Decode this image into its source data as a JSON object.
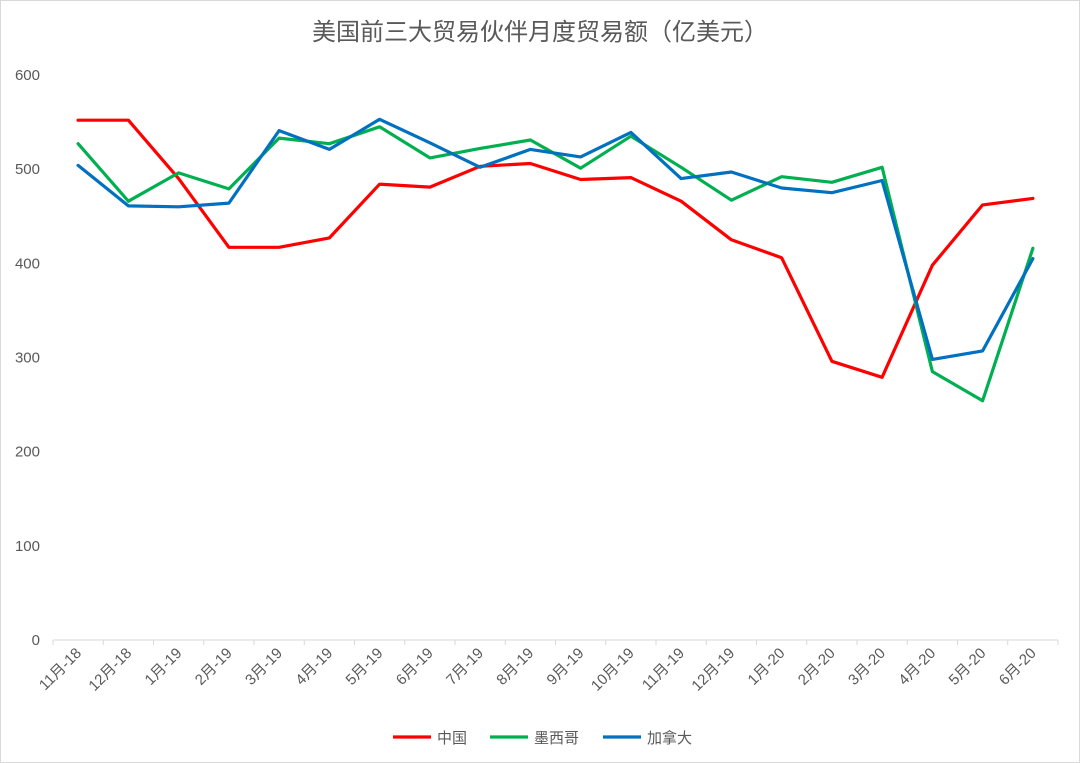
{
  "chart_data": {
    "type": "line",
    "title": "美国前三大贸易伙伴月度贸易额（亿美元）",
    "xlabel": "",
    "ylabel": "",
    "categories": [
      "11月-18",
      "12月-18",
      "1月-19",
      "2月-19",
      "3月-19",
      "4月-19",
      "5月-19",
      "6月-19",
      "7月-19",
      "8月-19",
      "9月-19",
      "10月-19",
      "11月-19",
      "12月-19",
      "1月-20",
      "2月-20",
      "3月-20",
      "4月-20",
      "5月-20",
      "6月-20"
    ],
    "ylim": [
      0,
      600
    ],
    "yticks": [
      0,
      100,
      200,
      300,
      400,
      500,
      600
    ],
    "grid": false,
    "legend_position": "bottom",
    "series": [
      {
        "name": "中国",
        "color": "#ff0000",
        "values": [
          552,
          552,
          490,
          417,
          417,
          427,
          484,
          481,
          503,
          506,
          489,
          491,
          466,
          425,
          406,
          296,
          279,
          398,
          462,
          469
        ]
      },
      {
        "name": "墨西哥",
        "color": "#00b050",
        "values": [
          527,
          466,
          496,
          479,
          533,
          527,
          545,
          512,
          522,
          531,
          501,
          535,
          502,
          467,
          492,
          486,
          502,
          285,
          254,
          416
        ]
      },
      {
        "name": "加拿大",
        "color": "#0070c0",
        "values": [
          504,
          461,
          460,
          464,
          541,
          521,
          553,
          528,
          502,
          521,
          513,
          539,
          490,
          497,
          480,
          475,
          488,
          298,
          307,
          405
        ]
      }
    ]
  }
}
